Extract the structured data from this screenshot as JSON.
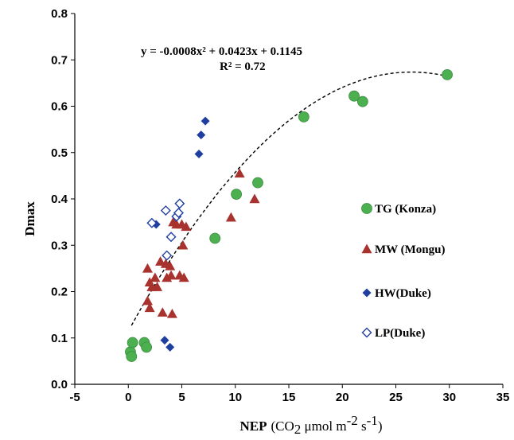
{
  "chart_data": {
    "type": "scatter",
    "xlabel_bold": "NEP",
    "xlabel_rest": "(CO",
    "xlabel_sub": "2",
    "xlabel_mid": " μmol m",
    "xlabel_sup1": "-2",
    "xlabel_mid2": " s",
    "xlabel_sup2": "-1",
    "xlabel_end": ")",
    "ylabel": "Dmax",
    "xlim": [
      -5,
      35
    ],
    "ylim": [
      0.0,
      0.8
    ],
    "xticks": [
      "-5",
      "0",
      "5",
      "10",
      "15",
      "20",
      "25",
      "30",
      "35"
    ],
    "yticks": [
      "0.0",
      "0.1",
      "0.2",
      "0.3",
      "0.4",
      "0.5",
      "0.6",
      "0.7",
      "0.8"
    ],
    "grid": false,
    "legend_position": "right",
    "equation": "y = -0.0008x² + 0.0423x + 0.1145",
    "r_squared": "R² = 0.72",
    "trendline": {
      "a": -0.0008,
      "b": 0.0423,
      "c": 0.1145,
      "x_range": [
        0.3,
        29.3
      ]
    },
    "series": [
      {
        "name": "TG (Konza)",
        "marker": "circle",
        "color": "#4caf50",
        "points": [
          [
            0.2,
            0.07
          ],
          [
            0.3,
            0.06
          ],
          [
            0.4,
            0.09
          ],
          [
            1.5,
            0.09
          ],
          [
            1.7,
            0.08
          ],
          [
            8.1,
            0.315
          ],
          [
            10.1,
            0.41
          ],
          [
            12.1,
            0.435
          ],
          [
            16.4,
            0.577
          ],
          [
            21.1,
            0.622
          ],
          [
            21.9,
            0.61
          ],
          [
            29.8,
            0.668
          ]
        ]
      },
      {
        "name": "MW (Mongu)",
        "marker": "triangle",
        "color": "#a8322d",
        "points": [
          [
            1.8,
            0.25
          ],
          [
            1.8,
            0.18
          ],
          [
            2.0,
            0.165
          ],
          [
            2.0,
            0.22
          ],
          [
            2.2,
            0.21
          ],
          [
            2.5,
            0.23
          ],
          [
            2.7,
            0.21
          ],
          [
            3.0,
            0.265
          ],
          [
            3.2,
            0.155
          ],
          [
            3.5,
            0.26
          ],
          [
            3.6,
            0.23
          ],
          [
            3.9,
            0.255
          ],
          [
            4.0,
            0.235
          ],
          [
            4.1,
            0.152
          ],
          [
            4.2,
            0.35
          ],
          [
            4.5,
            0.345
          ],
          [
            4.8,
            0.235
          ],
          [
            5.0,
            0.345
          ],
          [
            5.1,
            0.3
          ],
          [
            5.2,
            0.23
          ],
          [
            5.4,
            0.34
          ],
          [
            9.6,
            0.36
          ],
          [
            10.4,
            0.455
          ],
          [
            11.8,
            0.4
          ]
        ]
      },
      {
        "name": "HW(Duke)",
        "marker": "diamond",
        "color": "#1f3fa0",
        "points": [
          [
            2.6,
            0.345
          ],
          [
            3.4,
            0.095
          ],
          [
            3.9,
            0.08
          ],
          [
            4.0,
            0.318
          ],
          [
            6.6,
            0.497
          ],
          [
            6.8,
            0.538
          ],
          [
            7.2,
            0.568
          ]
        ]
      },
      {
        "name": "LP(Duke)",
        "marker": "open-diamond",
        "color": "#1f3fa0",
        "points": [
          [
            2.2,
            0.348
          ],
          [
            3.5,
            0.375
          ],
          [
            3.6,
            0.278
          ],
          [
            4.0,
            0.318
          ],
          [
            4.5,
            0.362
          ],
          [
            4.7,
            0.37
          ],
          [
            4.8,
            0.39
          ]
        ]
      }
    ]
  }
}
